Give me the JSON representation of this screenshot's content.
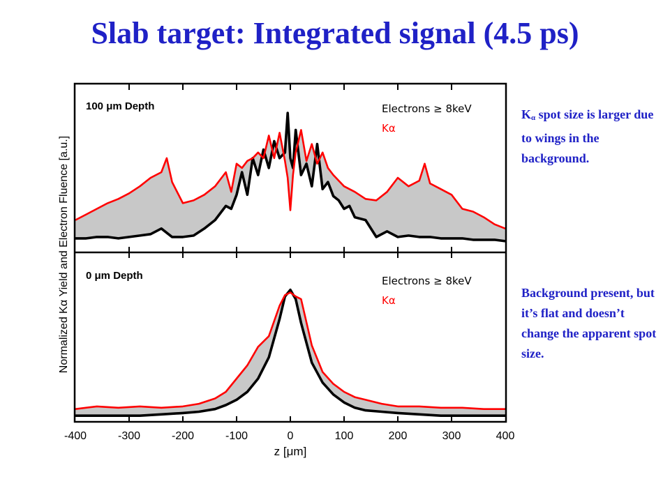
{
  "title": "Slab target: Integrated signal (4.5 ps)",
  "notes": {
    "note1_symbol": "K",
    "note1_sub": "α",
    "note1_text": " spot size is larger due to wings in the background.",
    "note2_text": "Background present, but it’s flat and doesn’t change the apparent spot size."
  },
  "colors": {
    "title": "#1f21c6",
    "k_alpha": "#ff0000",
    "electrons": "#000000",
    "fill": "#c8c8c8"
  },
  "chart_data": {
    "type": "line",
    "xlabel": "z [μm]",
    "ylabel": "Normalized Kα Yield and Electron Fluence [a.u.]",
    "xlim": [
      -400,
      400
    ],
    "xticks": [
      "-400",
      "-300",
      "-200",
      "-100",
      "0",
      "100",
      "200",
      "300",
      "400"
    ],
    "ylim": [
      0,
      1
    ],
    "grid": false,
    "panels": [
      {
        "label": "100 μm Depth",
        "legend": [
          "Electrons ≥ 8keV",
          "Kα"
        ],
        "legend_position": "top-right",
        "series": [
          {
            "name": "Kα",
            "color": "#ff0000",
            "x": [
              -400,
              -380,
              -360,
              -340,
              -320,
              -300,
              -280,
              -260,
              -240,
              -230,
              -220,
              -200,
              -180,
              -160,
              -140,
              -120,
              -110,
              -100,
              -90,
              -80,
              -70,
              -60,
              -50,
              -40,
              -30,
              -20,
              -10,
              -5,
              0,
              5,
              10,
              20,
              30,
              40,
              50,
              60,
              70,
              80,
              90,
              100,
              120,
              140,
              160,
              180,
              200,
              220,
              240,
              250,
              260,
              280,
              300,
              320,
              340,
              360,
              380,
              400
            ],
            "values": [
              0.18,
              0.22,
              0.26,
              0.3,
              0.33,
              0.37,
              0.42,
              0.48,
              0.52,
              0.62,
              0.45,
              0.3,
              0.32,
              0.36,
              0.42,
              0.52,
              0.38,
              0.58,
              0.55,
              0.6,
              0.62,
              0.66,
              0.62,
              0.78,
              0.62,
              0.8,
              0.6,
              0.48,
              0.25,
              0.5,
              0.66,
              0.82,
              0.6,
              0.72,
              0.58,
              0.66,
              0.55,
              0.5,
              0.46,
              0.42,
              0.38,
              0.33,
              0.32,
              0.38,
              0.48,
              0.42,
              0.46,
              0.58,
              0.44,
              0.4,
              0.36,
              0.26,
              0.24,
              0.2,
              0.15,
              0.12
            ]
          },
          {
            "name": "Electrons ≥ 8keV",
            "color": "#000000",
            "x": [
              -400,
              -380,
              -360,
              -340,
              -320,
              -300,
              -280,
              -260,
              -240,
              -220,
              -200,
              -180,
              -160,
              -140,
              -120,
              -110,
              -100,
              -90,
              -80,
              -70,
              -60,
              -50,
              -40,
              -30,
              -20,
              -10,
              -5,
              0,
              5,
              10,
              20,
              30,
              40,
              50,
              60,
              70,
              80,
              90,
              100,
              110,
              120,
              140,
              160,
              180,
              200,
              220,
              240,
              260,
              280,
              300,
              320,
              340,
              360,
              380,
              400
            ],
            "values": [
              0.05,
              0.05,
              0.06,
              0.06,
              0.05,
              0.06,
              0.07,
              0.08,
              0.12,
              0.06,
              0.06,
              0.07,
              0.12,
              0.18,
              0.28,
              0.26,
              0.36,
              0.52,
              0.36,
              0.62,
              0.5,
              0.68,
              0.55,
              0.74,
              0.62,
              0.66,
              0.94,
              0.62,
              0.55,
              0.82,
              0.5,
              0.58,
              0.42,
              0.72,
              0.4,
              0.45,
              0.35,
              0.32,
              0.26,
              0.28,
              0.2,
              0.18,
              0.06,
              0.1,
              0.06,
              0.07,
              0.06,
              0.06,
              0.05,
              0.05,
              0.05,
              0.04,
              0.04,
              0.04,
              0.03
            ]
          }
        ]
      },
      {
        "label": "0 μm Depth",
        "legend": [
          "Electrons ≥ 8keV",
          "Kα"
        ],
        "legend_position": "top-right",
        "series": [
          {
            "name": "Kα",
            "color": "#ff0000",
            "x": [
              -400,
              -360,
              -320,
              -280,
              -240,
              -200,
              -170,
              -140,
              -120,
              -100,
              -80,
              -60,
              -40,
              -20,
              -10,
              0,
              10,
              20,
              40,
              60,
              80,
              100,
              120,
              140,
              170,
              200,
              240,
              280,
              320,
              360,
              400
            ],
            "values": [
              0.07,
              0.09,
              0.08,
              0.09,
              0.08,
              0.09,
              0.11,
              0.15,
              0.2,
              0.3,
              0.4,
              0.54,
              0.62,
              0.85,
              0.93,
              0.95,
              0.92,
              0.9,
              0.55,
              0.35,
              0.26,
              0.2,
              0.16,
              0.14,
              0.11,
              0.09,
              0.09,
              0.08,
              0.08,
              0.07,
              0.07
            ]
          },
          {
            "name": "Electrons ≥ 8keV",
            "color": "#000000",
            "x": [
              -400,
              -360,
              -320,
              -280,
              -240,
              -200,
              -170,
              -140,
              -120,
              -100,
              -80,
              -60,
              -40,
              -20,
              -10,
              0,
              10,
              20,
              40,
              60,
              80,
              100,
              120,
              140,
              170,
              200,
              240,
              280,
              320,
              360,
              400
            ],
            "values": [
              0.02,
              0.02,
              0.02,
              0.02,
              0.03,
              0.04,
              0.05,
              0.07,
              0.1,
              0.14,
              0.2,
              0.3,
              0.46,
              0.75,
              0.92,
              0.97,
              0.9,
              0.72,
              0.42,
              0.27,
              0.18,
              0.12,
              0.08,
              0.06,
              0.05,
              0.04,
              0.03,
              0.02,
              0.02,
              0.02,
              0.02
            ]
          }
        ]
      }
    ]
  }
}
